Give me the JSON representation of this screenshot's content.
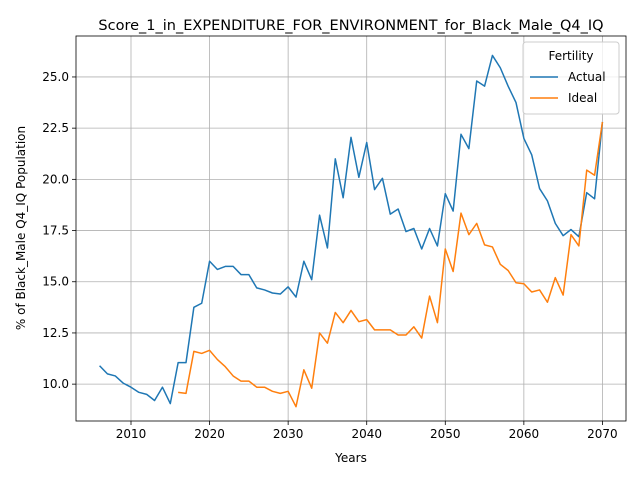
{
  "chart_data": {
    "type": "line",
    "title": "Score_1_in_EXPENDITURE_FOR_ENVIRONMENT_for_Black_Male_Q4_IQ",
    "xlabel": "Years",
    "ylabel": "% of Black_Male Q4_IQ Population",
    "xlim": [
      2003,
      2073
    ],
    "ylim": [
      8.2,
      27.0
    ],
    "xticks": [
      2010,
      2020,
      2030,
      2040,
      2050,
      2060,
      2070
    ],
    "yticks": [
      10.0,
      12.5,
      15.0,
      17.5,
      20.0,
      22.5,
      25.0
    ],
    "xtick_labels": [
      "2010",
      "2020",
      "2030",
      "2040",
      "2050",
      "2060",
      "2070"
    ],
    "ytick_labels": [
      "10.0",
      "12.5",
      "15.0",
      "17.5",
      "20.0",
      "22.5",
      "25.0"
    ],
    "grid": true,
    "legend": {
      "title": "Fertility",
      "placement": "top-right"
    },
    "series": [
      {
        "name": "Actual",
        "color": "#1f77b4",
        "x": [
          2006,
          2007,
          2008,
          2009,
          2010,
          2011,
          2012,
          2013,
          2014,
          2015,
          2016,
          2017,
          2018,
          2019,
          2020,
          2021,
          2022,
          2023,
          2024,
          2025,
          2026,
          2027,
          2028,
          2029,
          2030,
          2031,
          2032,
          2033,
          2034,
          2035,
          2036,
          2037,
          2038,
          2039,
          2040,
          2041,
          2042,
          2043,
          2044,
          2045,
          2046,
          2047,
          2048,
          2049,
          2050,
          2051,
          2052,
          2053,
          2054,
          2055,
          2056,
          2057,
          2058,
          2059,
          2060,
          2061,
          2062,
          2063,
          2064,
          2065,
          2066,
          2067,
          2068,
          2069,
          2070
        ],
        "values": [
          10.9,
          10.5,
          10.4,
          10.05,
          9.85,
          9.6,
          9.5,
          9.2,
          9.85,
          9.05,
          11.05,
          11.05,
          13.75,
          13.95,
          16.0,
          15.6,
          15.75,
          15.75,
          15.35,
          15.35,
          14.7,
          14.6,
          14.45,
          14.4,
          14.75,
          14.25,
          16.0,
          15.1,
          18.25,
          16.65,
          21.0,
          19.1,
          22.05,
          20.1,
          21.8,
          19.5,
          20.05,
          18.3,
          18.55,
          17.45,
          17.6,
          16.6,
          17.6,
          16.75,
          19.3,
          18.45,
          22.2,
          21.5,
          24.8,
          24.55,
          26.05,
          25.45,
          24.55,
          23.75,
          22.0,
          21.2,
          19.55,
          18.95,
          17.85,
          17.25,
          17.55,
          17.2,
          19.35,
          19.05,
          22.8
        ]
      },
      {
        "name": "Ideal",
        "color": "#ff7f0e",
        "x": [
          2016,
          2017,
          2018,
          2019,
          2020,
          2021,
          2022,
          2023,
          2024,
          2025,
          2026,
          2027,
          2028,
          2029,
          2030,
          2031,
          2032,
          2033,
          2034,
          2035,
          2036,
          2037,
          2038,
          2039,
          2040,
          2041,
          2042,
          2043,
          2044,
          2045,
          2046,
          2047,
          2048,
          2049,
          2050,
          2051,
          2052,
          2053,
          2054,
          2055,
          2056,
          2057,
          2058,
          2059,
          2060,
          2061,
          2062,
          2063,
          2064,
          2065,
          2066,
          2067,
          2068,
          2069,
          2070
        ],
        "values": [
          9.6,
          9.55,
          11.6,
          11.5,
          11.65,
          11.2,
          10.85,
          10.4,
          10.15,
          10.15,
          9.85,
          9.85,
          9.65,
          9.55,
          9.65,
          8.9,
          10.7,
          9.8,
          12.5,
          12.0,
          13.5,
          13.0,
          13.6,
          13.05,
          13.15,
          12.65,
          12.65,
          12.65,
          12.4,
          12.4,
          12.8,
          12.25,
          14.3,
          13.0,
          16.6,
          15.5,
          18.35,
          17.3,
          17.85,
          16.8,
          16.7,
          15.85,
          15.55,
          14.95,
          14.9,
          14.5,
          14.6,
          14.0,
          15.2,
          14.35,
          17.3,
          16.75,
          20.45,
          20.2,
          22.8
        ]
      }
    ]
  }
}
